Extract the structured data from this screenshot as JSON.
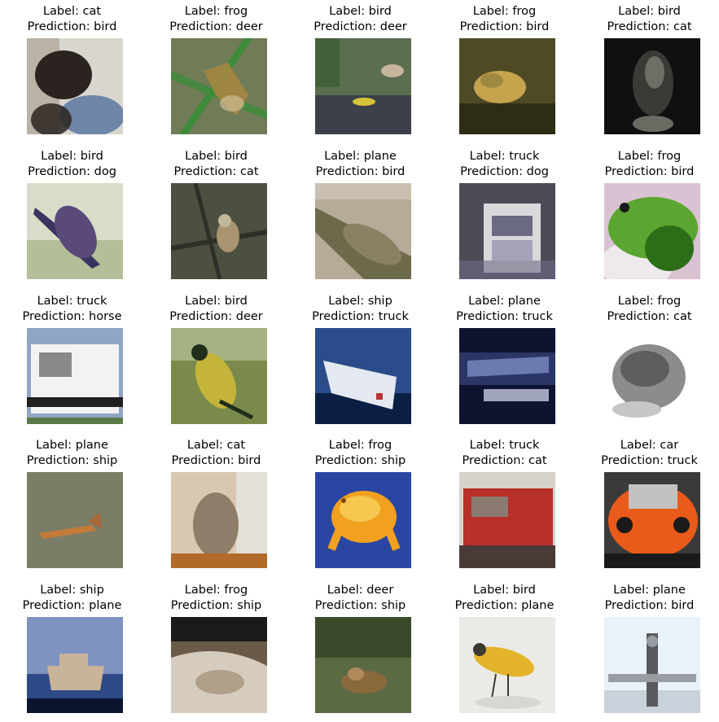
{
  "figure": {
    "panels": [
      {
        "label": "Label: cat",
        "prediction": "Prediction: bird",
        "scene": "cat",
        "palette": [
          "#d9d6cf",
          "#6e86a8",
          "#2b2320",
          "#8f7d6a"
        ]
      },
      {
        "label": "Label: frog",
        "prediction": "Prediction: deer",
        "scene": "frog-leaf",
        "palette": [
          "#6f7c57",
          "#3c8c3a",
          "#a9863f",
          "#d9c6a0"
        ]
      },
      {
        "label": "Label: bird",
        "prediction": "Prediction: deer",
        "scene": "bird-rock",
        "palette": [
          "#5b6e4f",
          "#3d4048",
          "#d6c33c",
          "#c6b49b"
        ]
      },
      {
        "label": "Label: frog",
        "prediction": "Prediction: bird",
        "scene": "frog-dark",
        "palette": [
          "#4e4a25",
          "#2f2c16",
          "#c6a44e",
          "#85773a"
        ]
      },
      {
        "label": "Label: bird",
        "prediction": "Prediction: cat",
        "scene": "bird-dark",
        "palette": [
          "#101010",
          "#6e6d66",
          "#3a3a37",
          "#a9a89c"
        ]
      },
      {
        "label": "Label: bird",
        "prediction": "Prediction: dog",
        "scene": "bird-blue",
        "palette": [
          "#d8dcc8",
          "#3a3560",
          "#8fa06a",
          "#5a4a7a"
        ]
      },
      {
        "label": "Label: bird",
        "prediction": "Prediction: cat",
        "scene": "bird-twig",
        "palette": [
          "#4b5040",
          "#aa9470",
          "#2e3028",
          "#c2b79a"
        ]
      },
      {
        "label": "Label: plane",
        "prediction": "Prediction: bird",
        "scene": "plane-cam",
        "palette": [
          "#b6ab99",
          "#6d6a4c",
          "#8a8165",
          "#d6cfc2"
        ]
      },
      {
        "label": "Label: truck",
        "prediction": "Prediction: dog",
        "scene": "truck",
        "palette": [
          "#4e4a55",
          "#d9d9dc",
          "#6b6a85",
          "#a4a3b8"
        ]
      },
      {
        "label": "Label: frog",
        "prediction": "Prediction: bird",
        "scene": "frog-green",
        "palette": [
          "#d9c2d1",
          "#5aa630",
          "#2c6e18",
          "#efe9ee"
        ]
      },
      {
        "label": "Label: truck",
        "prediction": "Prediction: horse",
        "scene": "truck-white",
        "palette": [
          "#8fa6c4",
          "#f2f2f2",
          "#202020",
          "#5a7a4a"
        ]
      },
      {
        "label": "Label: bird",
        "prediction": "Prediction: deer",
        "scene": "bird-yellow",
        "palette": [
          "#7a8a4a",
          "#c4b43a",
          "#1f2d1a",
          "#e9ead9"
        ]
      },
      {
        "label": "Label: ship",
        "prediction": "Prediction: truck",
        "scene": "ship-boat",
        "palette": [
          "#2a4c8a",
          "#e4e8f0",
          "#0b1f45",
          "#b73434"
        ]
      },
      {
        "label": "Label: plane",
        "prediction": "Prediction: truck",
        "scene": "plane-dark",
        "palette": [
          "#0e1330",
          "#6b7bb0",
          "#c7cce2",
          "#2b3566"
        ]
      },
      {
        "label": "Label: frog",
        "prediction": "Prediction: cat",
        "scene": "frog-grey",
        "palette": [
          "#ffffff",
          "#4a4a4a",
          "#8c8c8c",
          "#c6c6c6"
        ]
      },
      {
        "label": "Label: plane",
        "prediction": "Prediction: ship",
        "scene": "plane-olive",
        "palette": [
          "#7c7d67",
          "#c47a3a",
          "#a8683a",
          "#6a6b58"
        ]
      },
      {
        "label": "Label: cat",
        "prediction": "Prediction: bird",
        "scene": "cat-window",
        "palette": [
          "#d8c8b0",
          "#8e7d69",
          "#e3e0d8",
          "#b06a2a"
        ]
      },
      {
        "label": "Label: frog",
        "prediction": "Prediction: ship",
        "scene": "frog-orange",
        "palette": [
          "#2a46a2",
          "#f2a020",
          "#7a4810",
          "#f6c850"
        ]
      },
      {
        "label": "Label: truck",
        "prediction": "Prediction: cat",
        "scene": "truck-red",
        "palette": [
          "#b8302a",
          "#d8d2cc",
          "#4a3a36",
          "#8a7a70"
        ]
      },
      {
        "label": "Label: car",
        "prediction": "Prediction: truck",
        "scene": "car-orange",
        "palette": [
          "#3a3a3a",
          "#ea5a1a",
          "#c2c2c2",
          "#1a1a1a"
        ]
      },
      {
        "label": "Label: ship",
        "prediction": "Prediction: plane",
        "scene": "ship-sea",
        "palette": [
          "#2e4a86",
          "#c9b49a",
          "#0c1530",
          "#7f93c0"
        ]
      },
      {
        "label": "Label: frog",
        "prediction": "Prediction: ship",
        "scene": "frog-bark",
        "palette": [
          "#1a1a18",
          "#b0a08a",
          "#6a5a48",
          "#d6ccbe"
        ]
      },
      {
        "label": "Label: deer",
        "prediction": "Prediction: ship",
        "scene": "deer",
        "palette": [
          "#3a4a2a",
          "#8a6a3a",
          "#5c6a44",
          "#b08a5a"
        ]
      },
      {
        "label": "Label: bird",
        "prediction": "Prediction: plane",
        "scene": "bird-white",
        "palette": [
          "#eceae6",
          "#e3b42a",
          "#3a3a30",
          "#d8d6d2"
        ]
      },
      {
        "label": "Label: plane",
        "prediction": "Prediction: bird",
        "scene": "plane-sky",
        "palette": [
          "#e8f2f8",
          "#5a5a5e",
          "#9a9ca4",
          "#c9d2da"
        ]
      }
    ]
  }
}
